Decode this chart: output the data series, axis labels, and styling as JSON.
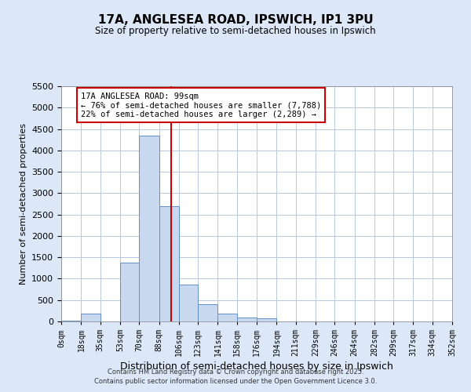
{
  "title": "17A, ANGLESEA ROAD, IPSWICH, IP1 3PU",
  "subtitle": "Size of property relative to semi-detached houses in Ipswich",
  "xlabel": "Distribution of semi-detached houses by size in Ipswich",
  "ylabel": "Number of semi-detached properties",
  "bin_edges": [
    0,
    18,
    35,
    53,
    70,
    88,
    106,
    123,
    141,
    158,
    176,
    194,
    211,
    229,
    246,
    264,
    282,
    299,
    317,
    334,
    352
  ],
  "bar_heights": [
    25,
    175,
    0,
    1375,
    4350,
    2700,
    870,
    400,
    175,
    100,
    65,
    0,
    0,
    0,
    0,
    0,
    0,
    0,
    0,
    0
  ],
  "bar_color": "#c8d8ee",
  "bar_edge_color": "#6090c8",
  "property_size": 99,
  "vline_color": "#cc0000",
  "ylim": [
    0,
    5500
  ],
  "yticks": [
    0,
    500,
    1000,
    1500,
    2000,
    2500,
    3000,
    3500,
    4000,
    4500,
    5000,
    5500
  ],
  "annotation_title": "17A ANGLESEA ROAD: 99sqm",
  "annotation_line1": "← 76% of semi-detached houses are smaller (7,788)",
  "annotation_line2": "22% of semi-detached houses are larger (2,289) →",
  "annotation_box_color": "#ffffff",
  "annotation_border_color": "#cc0000",
  "footer1": "Contains HM Land Registry data © Crown copyright and database right 2025.",
  "footer2": "Contains public sector information licensed under the Open Government Licence 3.0.",
  "background_color": "#dce8f8",
  "plot_background_color": "#ffffff",
  "grid_color": "#b8c8e0"
}
